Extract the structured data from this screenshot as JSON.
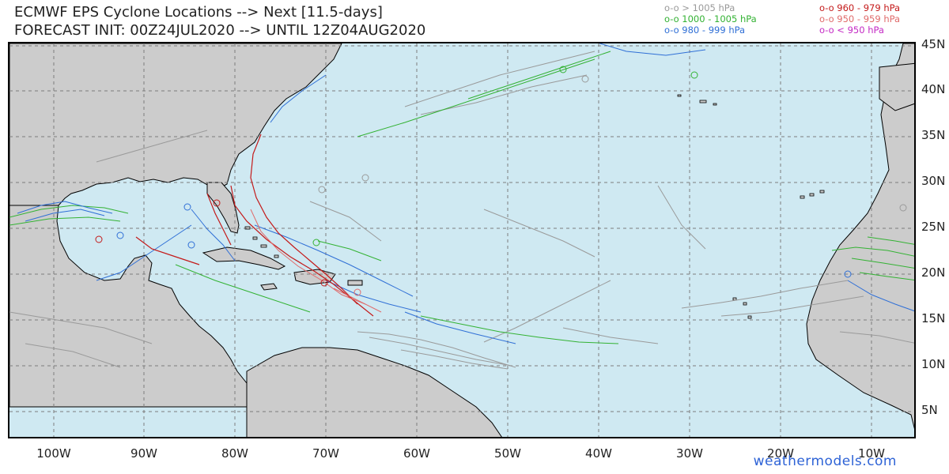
{
  "title": {
    "line1": "ECMWF EPS Cyclone Locations --> Next [11.5-days]",
    "line2": "FORECAST INIT: 00Z24JUL2020 --> UNTIL 12Z04AUG2020"
  },
  "legend": [
    {
      "text": "o-o > 1005 hPa",
      "color": "#9a9a9a"
    },
    {
      "text": "o-o 1000 - 1005 hPa",
      "color": "#33b233"
    },
    {
      "text": "o-o 980 - 999 hPa",
      "color": "#2f6fd6"
    },
    {
      "text": "o-o 960 - 979 hPa",
      "color": "#c41a1a"
    },
    {
      "text": "o-o 950 - 959 hPa",
      "color": "#e06b6b"
    },
    {
      "text": "o-o < 950 hPa",
      "color": "#c42ac4"
    }
  ],
  "axes": {
    "lon_labels": [
      "100W",
      "90W",
      "80W",
      "70W",
      "60W",
      "50W",
      "40W",
      "30W",
      "20W",
      "10W"
    ],
    "lat_labels": [
      "45N",
      "40N",
      "35N",
      "30N",
      "25N",
      "20N",
      "15N",
      "10N",
      "5N"
    ]
  },
  "colors": {
    "ocean": "#cfe9f2",
    "land": "#cccccc",
    "gray_track": "#9a9a9a",
    "green_track": "#33b233",
    "blue_track": "#2f6fd6",
    "red_track": "#c41a1a",
    "pink_track": "#e06b6b"
  },
  "credit": "weathermodels.com"
}
